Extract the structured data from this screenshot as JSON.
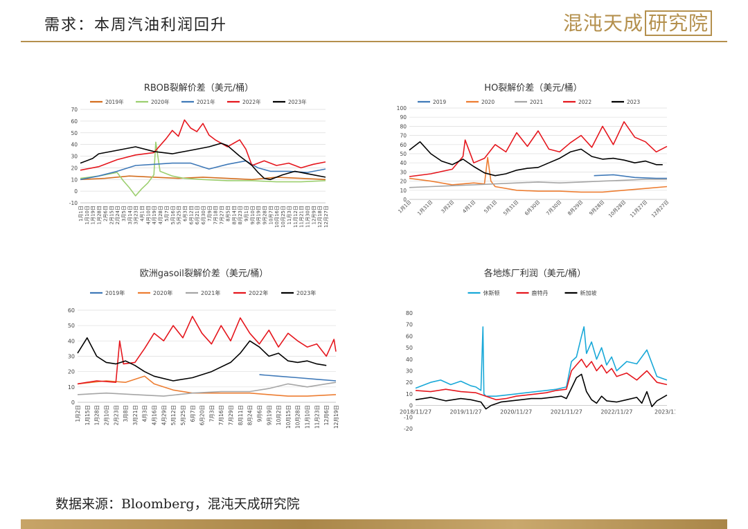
{
  "header": {
    "title": "需求：本周汽油利润回升",
    "logo_text": "混沌天成",
    "logo_box": "研究院"
  },
  "source": "数据来源：Bloomberg，混沌天成研究院",
  "colors": {
    "accent": "#b4904d",
    "y2019": "#d46e1f",
    "y2020": "#9ccf6f",
    "y2021": "#3f79b8",
    "y2022": "#e5161d",
    "y2023": "#000000",
    "grid": "#dddddd"
  },
  "chart_data": [
    {
      "id": "rbob",
      "type": "line",
      "title": "RBOB裂解价差（美元/桶）",
      "ylim": [
        -10,
        70
      ],
      "yticks": [
        -10,
        0,
        10,
        20,
        30,
        40,
        50,
        60,
        70
      ],
      "grid": true,
      "legend": "top",
      "x_labels": [
        "1月1日",
        "1月10日",
        "1月19日",
        "1月28日",
        "2月6日",
        "2月15日",
        "2月24日",
        "3月5日",
        "3月14日",
        "3月23日",
        "4月1日",
        "4月10日",
        "4月19日",
        "4月28日",
        "5月7日",
        "5月16日",
        "5月25日",
        "6月3日",
        "6月12日",
        "6月21日",
        "6月30日",
        "7月9日",
        "7月18日",
        "7月27日",
        "8月5日",
        "8月14日",
        "8月23日",
        "9月1日",
        "9月10日",
        "9月19日",
        "9月28日",
        "10月7日",
        "10月16日",
        "10月25日",
        "11月3日",
        "11月12日",
        "11月21日",
        "11月30日",
        "12月9日",
        "12月18日",
        "12月27日"
      ],
      "x_range": [
        0,
        40
      ],
      "series": [
        {
          "name": "2019年",
          "color": "#d46e1f",
          "x": [
            0,
            4,
            8,
            12,
            16,
            20,
            24,
            28,
            32,
            36,
            40
          ],
          "y": [
            10,
            11,
            13,
            12,
            11,
            12,
            11,
            10,
            12,
            11,
            10
          ]
        },
        {
          "name": "2020年",
          "color": "#9ccf6f",
          "x": [
            0,
            3,
            6,
            7,
            8,
            9,
            10,
            11,
            12,
            12.3,
            13,
            15,
            17,
            20,
            24,
            28,
            32,
            36,
            40
          ],
          "y": [
            11,
            13,
            16,
            9,
            3,
            -4,
            2,
            7,
            14,
            42,
            17,
            13,
            11,
            10,
            9,
            9,
            8,
            8,
            9
          ]
        },
        {
          "name": "2021年",
          "color": "#3f79b8",
          "x": [
            0,
            3,
            6,
            9,
            12,
            15,
            18,
            21,
            24,
            27,
            29,
            31,
            34,
            37,
            40
          ],
          "y": [
            10,
            13,
            17,
            22,
            23,
            24,
            24,
            19,
            23,
            26,
            20,
            17,
            17,
            16,
            19
          ]
        },
        {
          "name": "2022年",
          "color": "#e5161d",
          "x": [
            0,
            3,
            6,
            9,
            12,
            14,
            15,
            16,
            17,
            18,
            19,
            20,
            21,
            22,
            24,
            26,
            27,
            28,
            30,
            32,
            34,
            36,
            38,
            40
          ],
          "y": [
            18,
            21,
            27,
            31,
            33,
            45,
            52,
            47,
            61,
            54,
            51,
            58,
            48,
            44,
            38,
            44,
            36,
            22,
            26,
            22,
            24,
            20,
            23,
            25
          ]
        },
        {
          "name": "2023年",
          "color": "#000000",
          "x": [
            0,
            2,
            3,
            6,
            9,
            12,
            15,
            18,
            21,
            23,
            24,
            26,
            28,
            29,
            30,
            31,
            33,
            35,
            37,
            40
          ],
          "y": [
            24,
            28,
            32,
            35,
            38,
            34,
            32,
            35,
            38,
            41,
            39,
            30,
            22,
            16,
            11,
            10,
            14,
            17,
            15,
            12
          ]
        }
      ]
    },
    {
      "id": "ho",
      "type": "line",
      "title": "HO裂解价差（美元/桶）",
      "ylim": [
        0,
        100
      ],
      "yticks": [
        0,
        10,
        20,
        30,
        40,
        50,
        60,
        70,
        80,
        90,
        100
      ],
      "grid": true,
      "legend": "top",
      "x_labels": [
        "1月1日",
        "1月31日",
        "3月2日",
        "4月1日",
        "5月1日",
        "5月31日",
        "6月30日",
        "7月30日",
        "8月29日",
        "9月28日",
        "10月28日",
        "11月27日",
        "12月27日"
      ],
      "x_range": [
        0,
        12
      ],
      "series": [
        {
          "name": "2019",
          "color": "#3f79b8",
          "x": [
            8.6,
            9.5,
            10.5,
            11.5,
            12
          ],
          "y": [
            26,
            27,
            24,
            23,
            23
          ]
        },
        {
          "name": "2020",
          "color": "#ed7d31",
          "x": [
            0,
            1,
            2,
            3,
            3.5,
            3.65,
            3.8,
            4,
            5,
            6,
            7,
            8,
            9,
            10,
            11,
            12
          ],
          "y": [
            23,
            20,
            16,
            18,
            17,
            46,
            20,
            14,
            10,
            9,
            9,
            8,
            8,
            10,
            12,
            14
          ]
        },
        {
          "name": "2021",
          "color": "#a5a5a5",
          "x": [
            0,
            1,
            2,
            3,
            4,
            5,
            6,
            7,
            8,
            9,
            10,
            11,
            12
          ],
          "y": [
            13,
            14,
            15,
            16,
            17,
            18,
            19,
            18,
            19,
            20,
            21,
            22,
            22
          ]
        },
        {
          "name": "2022",
          "color": "#e5161d",
          "x": [
            0,
            1,
            2,
            2.5,
            2.6,
            3,
            3.5,
            4,
            4.5,
            5,
            5.5,
            6,
            6.5,
            7,
            7.5,
            8,
            8.5,
            9,
            9.5,
            10,
            10.5,
            11,
            11.5,
            12
          ],
          "y": [
            25,
            28,
            33,
            47,
            65,
            40,
            45,
            60,
            52,
            73,
            58,
            75,
            55,
            52,
            62,
            70,
            57,
            80,
            60,
            85,
            68,
            63,
            52,
            58
          ]
        },
        {
          "name": "2023",
          "color": "#000000",
          "x": [
            0,
            0.5,
            1,
            1.5,
            2,
            2.5,
            3,
            3.5,
            4,
            4.5,
            5,
            5.5,
            6,
            6.5,
            7,
            7.5,
            8,
            8.5,
            9,
            9.5,
            10,
            10.5,
            11,
            11.5,
            11.8
          ],
          "y": [
            54,
            63,
            50,
            42,
            38,
            44,
            36,
            29,
            26,
            28,
            32,
            34,
            35,
            40,
            45,
            52,
            55,
            47,
            44,
            45,
            43,
            40,
            42,
            38,
            38
          ]
        }
      ]
    },
    {
      "id": "gasoil",
      "type": "line",
      "title": "欧洲gasoil裂解价差（美元/桶）",
      "ylim": [
        0,
        60
      ],
      "yticks": [
        0,
        10,
        20,
        30,
        40,
        50,
        60
      ],
      "grid": true,
      "legend": "top",
      "x_labels": [
        "1月2日",
        "1月15日",
        "1月28日",
        "2月10日",
        "2月23日",
        "3月8日",
        "3月21日",
        "4月3日",
        "4月16日",
        "4月29日",
        "5月12日",
        "5月25日",
        "6月7日",
        "6月20日",
        "7月3日",
        "7月16日",
        "7月29日",
        "8月11日",
        "8月24日",
        "9月6日",
        "9月19日",
        "10月2日",
        "10月15日",
        "10月28日",
        "11月10日",
        "11月23日",
        "12月6日",
        "12月19日"
      ],
      "x_range": [
        0,
        27
      ],
      "series": [
        {
          "name": "2019年",
          "color": "#3f79b8",
          "x": [
            19,
            21,
            23,
            25,
            27
          ],
          "y": [
            18,
            17,
            16,
            15,
            14
          ]
        },
        {
          "name": "2020年",
          "color": "#ed7d31",
          "x": [
            0,
            3,
            5,
            7,
            8,
            10,
            12,
            15,
            18,
            20,
            22,
            24,
            27
          ],
          "y": [
            12,
            14,
            13,
            17,
            12,
            8,
            6,
            6,
            6,
            5,
            4,
            4,
            5
          ]
        },
        {
          "name": "2021年",
          "color": "#a5a5a5",
          "x": [
            0,
            3,
            6,
            9,
            12,
            15,
            18,
            20,
            22,
            24,
            27
          ],
          "y": [
            5,
            6,
            5,
            4,
            6,
            7,
            7,
            9,
            12,
            10,
            13
          ]
        },
        {
          "name": "2022年",
          "color": "#e5161d",
          "x": [
            0,
            2,
            4,
            4.4,
            4.8,
            6,
            7,
            8,
            9,
            10,
            11,
            12,
            13,
            14,
            15,
            16,
            17,
            18,
            19,
            20,
            21,
            22,
            23,
            24,
            25,
            26,
            26.8,
            27
          ],
          "y": [
            12,
            14,
            13,
            40,
            25,
            26,
            35,
            45,
            40,
            50,
            42,
            56,
            45,
            38,
            50,
            40,
            55,
            45,
            38,
            47,
            36,
            45,
            40,
            36,
            38,
            30,
            41,
            33
          ]
        },
        {
          "name": "2023年",
          "color": "#000000",
          "x": [
            0,
            1,
            2,
            3,
            4,
            5,
            6,
            7,
            8,
            10,
            12,
            14,
            16,
            17,
            18,
            19,
            20,
            21,
            22,
            23,
            24,
            25,
            26
          ],
          "y": [
            32,
            42,
            30,
            26,
            25,
            27,
            24,
            20,
            17,
            14,
            16,
            20,
            26,
            32,
            40,
            36,
            30,
            32,
            27,
            26,
            27,
            25,
            24
          ]
        }
      ]
    },
    {
      "id": "refinery",
      "type": "line",
      "title": "各地炼厂利润（美元/桶）",
      "ylim": [
        -20,
        80
      ],
      "yticks": [
        -20,
        -10,
        0,
        10,
        20,
        30,
        40,
        50,
        60,
        70,
        80
      ],
      "grid": false,
      "legend": "top",
      "x_labels": [
        "2018/11/27",
        "2019/11/27",
        "2020/11/27",
        "2021/11/27",
        "2022/11/27",
        "2023/11/"
      ],
      "x_range": [
        0,
        5
      ],
      "series": [
        {
          "name": "休斯顿",
          "color": "#18a8d8",
          "x": [
            0,
            0.3,
            0.5,
            0.7,
            0.9,
            1.0,
            1.1,
            1.2,
            1.3,
            1.34,
            1.36,
            1.4,
            1.6,
            1.8,
            2.0,
            2.2,
            2.4,
            2.6,
            2.8,
            3.0,
            3.1,
            3.2,
            3.3,
            3.35,
            3.4,
            3.5,
            3.6,
            3.7,
            3.8,
            3.9,
            4.0,
            4.2,
            4.4,
            4.6,
            4.8,
            5.0
          ],
          "y": [
            15,
            20,
            22,
            18,
            21,
            19,
            17,
            16,
            13,
            68,
            10,
            8,
            8,
            9,
            10,
            11,
            12,
            13,
            14,
            16,
            38,
            42,
            60,
            68,
            45,
            55,
            40,
            50,
            35,
            42,
            30,
            38,
            36,
            48,
            25,
            22
          ]
        },
        {
          "name": "鹿特丹",
          "color": "#e5161d",
          "x": [
            0,
            0.3,
            0.6,
            0.9,
            1.2,
            1.4,
            1.6,
            1.8,
            2.0,
            2.2,
            2.4,
            2.6,
            2.8,
            3.0,
            3.1,
            3.2,
            3.3,
            3.4,
            3.5,
            3.6,
            3.7,
            3.8,
            3.9,
            4.0,
            4.2,
            4.4,
            4.6,
            4.8,
            5.0
          ],
          "y": [
            13,
            12,
            14,
            12,
            11,
            8,
            5,
            6,
            8,
            9,
            10,
            11,
            13,
            14,
            30,
            35,
            40,
            33,
            38,
            30,
            35,
            28,
            32,
            25,
            28,
            22,
            30,
            20,
            18
          ]
        },
        {
          "name": "新加坡",
          "color": "#000000",
          "x": [
            0,
            0.3,
            0.6,
            0.9,
            1.1,
            1.3,
            1.4,
            1.5,
            1.7,
            1.9,
            2.1,
            2.3,
            2.5,
            2.7,
            2.9,
            3.0,
            3.1,
            3.2,
            3.3,
            3.4,
            3.5,
            3.6,
            3.7,
            3.8,
            4.0,
            4.2,
            4.4,
            4.5,
            4.6,
            4.7,
            4.8,
            5.0
          ],
          "y": [
            5,
            7,
            4,
            6,
            5,
            3,
            -3,
            0,
            3,
            4,
            5,
            6,
            6,
            7,
            8,
            6,
            15,
            24,
            27,
            12,
            5,
            2,
            8,
            4,
            3,
            5,
            7,
            2,
            12,
            -1,
            4,
            9
          ]
        }
      ]
    }
  ]
}
